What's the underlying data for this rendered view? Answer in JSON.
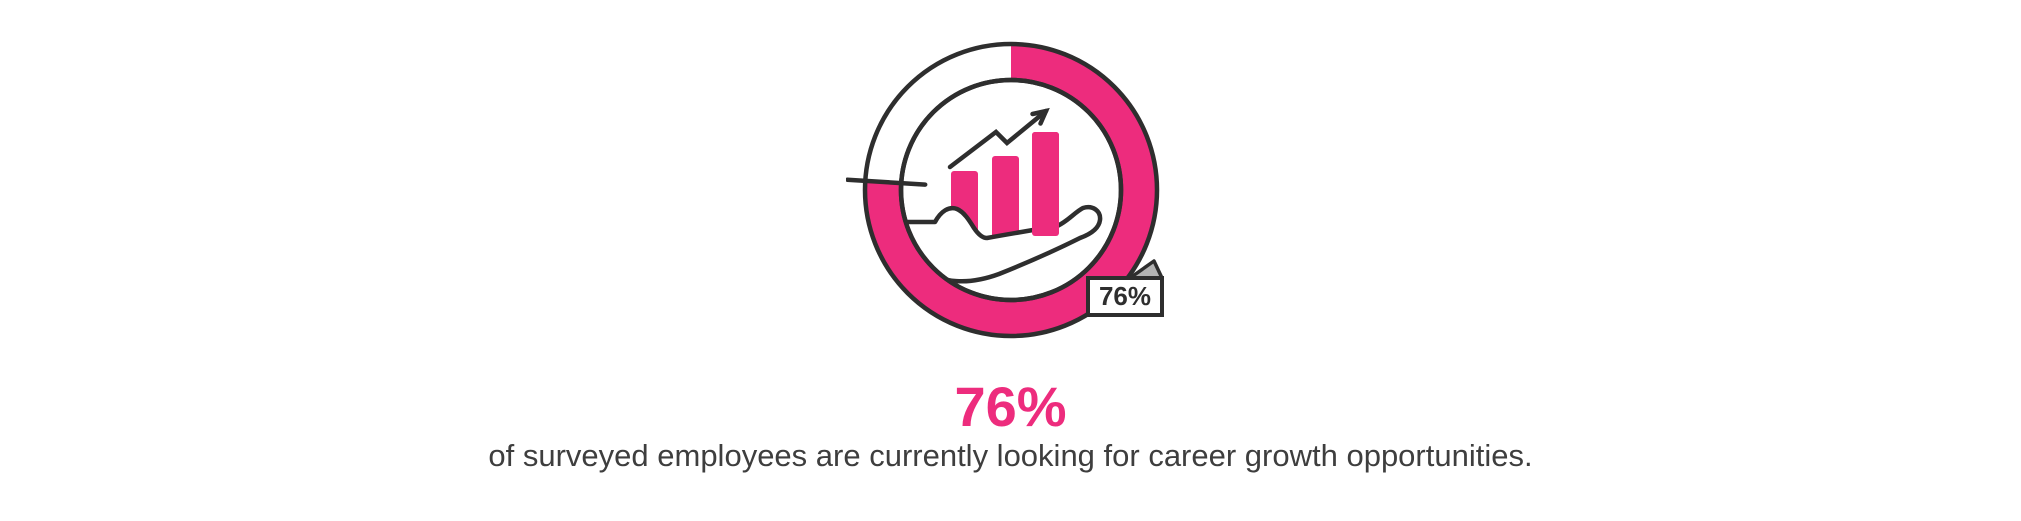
{
  "page": {
    "background": "#FFFFFF"
  },
  "donut": {
    "percent": 76,
    "tag_label": "76%",
    "colors": {
      "pink": "#ED2C7D",
      "ink": "#2E2E2E",
      "gray": "#B3B3B3",
      "white": "#FFFFFF",
      "text": "#3E3E3E"
    },
    "icon": "hand-holding-growth-bar-chart"
  },
  "stat": {
    "heading": "76%",
    "caption": "of surveyed employees are currently looking for career growth opportunities."
  },
  "chart_data": {
    "type": "pie",
    "variant": "donut-gauge",
    "title": "76%",
    "caption": "of surveyed employees are currently looking for career growth opportunities.",
    "series": [
      {
        "name": "employees currently looking for career growth",
        "value": 76,
        "color": "#ED2C7D"
      },
      {
        "name": "remainder",
        "value": 24,
        "color": "#FFFFFF"
      }
    ],
    "value_label": "76%",
    "start_angle": "12 o'clock",
    "direction": "clockwise",
    "legend": "none",
    "decoration": {
      "center_icon": "hand-holding-bar-chart-with-up-arrow",
      "icon_bars": 3,
      "icon_bar_trend": "ascending"
    }
  }
}
